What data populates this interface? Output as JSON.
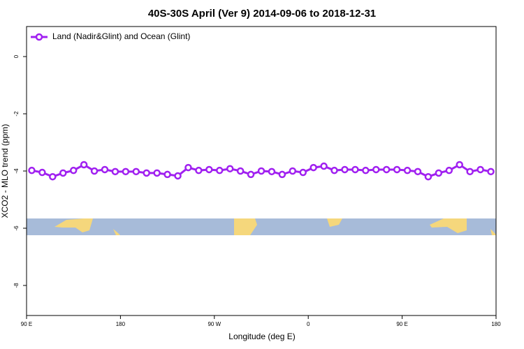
{
  "chart_data": {
    "type": "line",
    "title": "40S-30S April (Ver 9)   2014-09-06 to 2018-12-31",
    "x_label": "Longitude (deg E)",
    "y_label": "XCO2 - MLO trend (ppm)",
    "xlim": [
      90,
      540
    ],
    "ylim": [
      -9.05,
      1.05
    ],
    "xticks": [
      {
        "value": 90,
        "label": "90 E"
      },
      180,
      {
        "value": 270,
        "label": "90 W"
      },
      {
        "value": 360,
        "label": "0"
      },
      {
        "value": 450,
        "label": "90 E"
      },
      {
        "value": 540,
        "label": "180"
      }
    ],
    "yticks": [
      0,
      -2,
      -4,
      -6,
      -8
    ],
    "legend": "top-left",
    "series": [
      {
        "name": "Land (Nadir&Glint) and Ocean (Glint)",
        "color": "#a020f0",
        "x": [
          95,
          105,
          115,
          125,
          135,
          145,
          155,
          165,
          175,
          185,
          195,
          205,
          215,
          225,
          235,
          245,
          255,
          265,
          275,
          285,
          295,
          305,
          315,
          325,
          335,
          345,
          355,
          365,
          375,
          385,
          395,
          405,
          415,
          425,
          435,
          445,
          455,
          465,
          475,
          485,
          495,
          505,
          515,
          525,
          535
        ],
        "values": [
          -3.98,
          -4.05,
          -4.2,
          -4.07,
          -3.98,
          -3.78,
          -4.0,
          -3.95,
          -4.02,
          -4.02,
          -4.02,
          -4.07,
          -4.07,
          -4.12,
          -4.17,
          -3.88,
          -3.98,
          -3.95,
          -3.98,
          -3.92,
          -4.0,
          -4.12,
          -4.0,
          -4.02,
          -4.12,
          -4.0,
          -4.05,
          -3.88,
          -3.83,
          -3.98,
          -3.95,
          -3.95,
          -3.98,
          -3.95,
          -3.95,
          -3.95,
          -3.98,
          -4.02,
          -4.2,
          -4.07,
          -3.98,
          -3.78,
          -4.02,
          -3.95,
          -4.02
        ]
      }
    ]
  }
}
